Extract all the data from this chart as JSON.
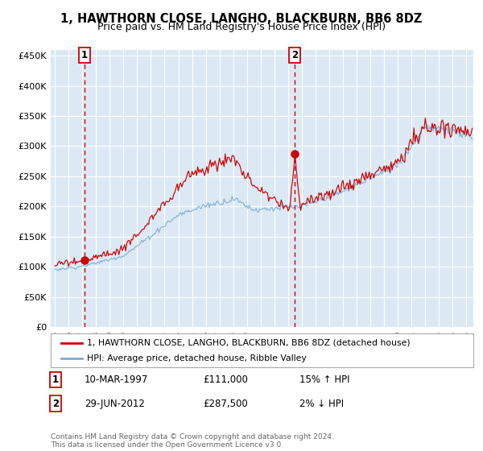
{
  "title": "1, HAWTHORN CLOSE, LANGHO, BLACKBURN, BB6 8DZ",
  "subtitle": "Price paid vs. HM Land Registry's House Price Index (HPI)",
  "ylim": [
    0,
    460000
  ],
  "yticks": [
    0,
    50000,
    100000,
    150000,
    200000,
    250000,
    300000,
    350000,
    400000,
    450000
  ],
  "ytick_labels": [
    "£0",
    "£50K",
    "£100K",
    "£150K",
    "£200K",
    "£250K",
    "£300K",
    "£350K",
    "£400K",
    "£450K"
  ],
  "xlim_start": 1994.7,
  "xlim_end": 2025.5,
  "background_color": "#dce9f5",
  "grid_color": "#ffffff",
  "line_color_red": "#cc0000",
  "line_color_blue": "#7aadd4",
  "sale1_x": 1997.19,
  "sale1_y": 111000,
  "sale1_label": "1",
  "sale2_x": 2012.49,
  "sale2_y": 287500,
  "sale2_label": "2",
  "legend_line1": "1, HAWTHORN CLOSE, LANGHO, BLACKBURN, BB6 8DZ (detached house)",
  "legend_line2": "HPI: Average price, detached house, Ribble Valley",
  "table_row1": [
    "1",
    "10-MAR-1997",
    "£111,000",
    "15% ↑ HPI"
  ],
  "table_row2": [
    "2",
    "29-JUN-2012",
    "£287,500",
    "2% ↓ HPI"
  ],
  "footer": "Contains HM Land Registry data © Crown copyright and database right 2024.\nThis data is licensed under the Open Government Licence v3.0."
}
